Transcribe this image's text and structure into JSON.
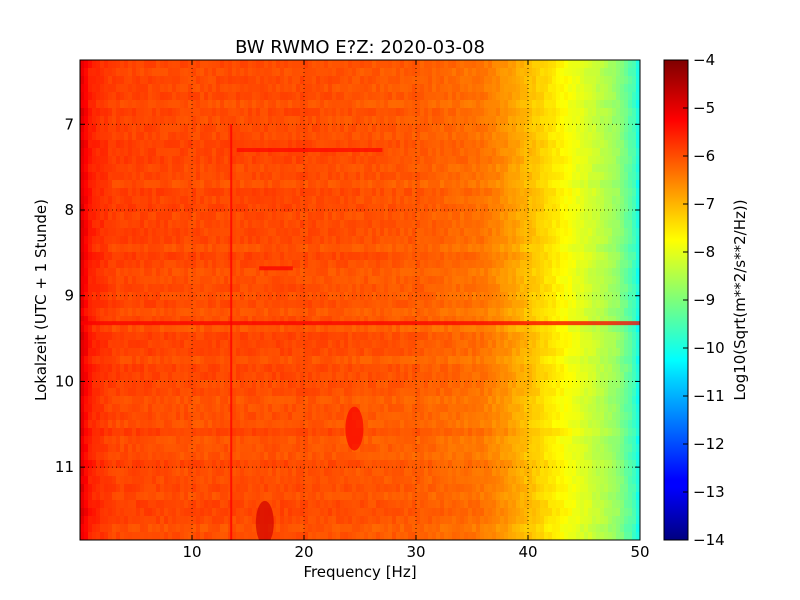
{
  "chart_data": {
    "type": "heatmap",
    "title": "BW RWMO E?Z: 2020-03-08",
    "xlabel": "Frequency [Hz]",
    "ylabel": "Lokalzeit (UTC + 1 Stunde)",
    "xlim": [
      0,
      50
    ],
    "ylim": [
      6.25,
      11.85
    ],
    "y_inverted": true,
    "x_ticks": [
      10,
      20,
      30,
      40,
      50
    ],
    "y_ticks": [
      7,
      8,
      9,
      10,
      11
    ],
    "grid": true,
    "colormap": "jet",
    "colorbar": {
      "label": "Log10(Sqrt(m**2/s**2/Hz))",
      "range": [
        -14,
        -4
      ],
      "ticks": [
        -4,
        -5,
        -6,
        -7,
        -8,
        -9,
        -10,
        -11,
        -12,
        -13,
        -14
      ]
    },
    "spectrum_profile": [
      {
        "freq": 0,
        "value": -4.9
      },
      {
        "freq": 1,
        "value": -5.6
      },
      {
        "freq": 3,
        "value": -5.9
      },
      {
        "freq": 10,
        "value": -6.0
      },
      {
        "freq": 20,
        "value": -6.0
      },
      {
        "freq": 30,
        "value": -6.15
      },
      {
        "freq": 36,
        "value": -6.4
      },
      {
        "freq": 38,
        "value": -6.7
      },
      {
        "freq": 40,
        "value": -7.1
      },
      {
        "freq": 42,
        "value": -7.5
      },
      {
        "freq": 44,
        "value": -7.9
      },
      {
        "freq": 46,
        "value": -8.3
      },
      {
        "freq": 48,
        "value": -8.8
      },
      {
        "freq": 49.5,
        "value": -9.6
      },
      {
        "freq": 50,
        "value": -10.2
      }
    ],
    "features": [
      {
        "kind": "vertical_line",
        "freq": 13.5,
        "time_start": 7.0,
        "time_end": 11.85,
        "value": -5.3
      },
      {
        "kind": "horizontal_band",
        "time": 9.32,
        "freq_start": 0,
        "freq_end": 50,
        "value": -5.2
      },
      {
        "kind": "horizontal_band",
        "time": 7.3,
        "freq_start": 14,
        "freq_end": 27,
        "value": -5.3
      },
      {
        "kind": "horizontal_band",
        "time": 8.68,
        "freq_start": 16,
        "freq_end": 19,
        "value": -5.2
      },
      {
        "kind": "blob",
        "freq": 16.5,
        "time": 11.65,
        "value": -4.8
      },
      {
        "kind": "blob",
        "freq": 24.5,
        "time": 10.55,
        "value": -5.2
      }
    ]
  }
}
